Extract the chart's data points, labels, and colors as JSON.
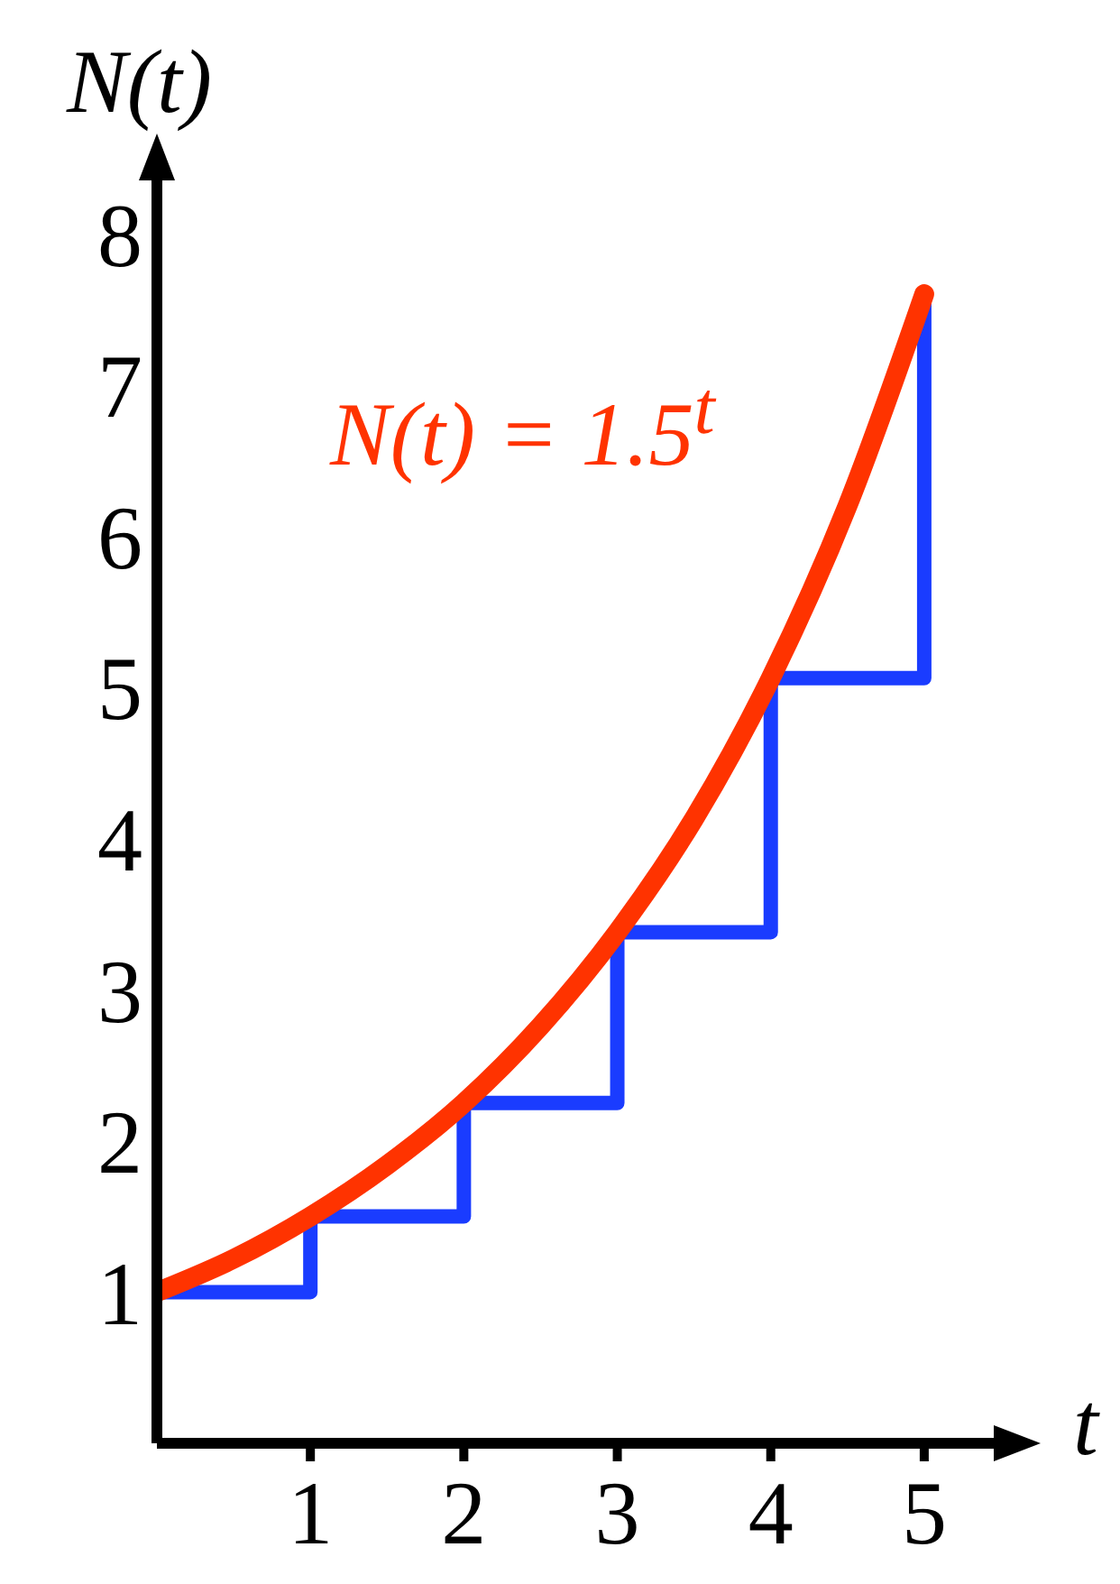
{
  "chart_data": {
    "type": "line",
    "ylabel": "N(t)",
    "xlabel": "t",
    "xlim": [
      0,
      5.5
    ],
    "ylim": [
      0,
      8.4
    ],
    "xticks": [
      1,
      2,
      3,
      4,
      5
    ],
    "yticks": [
      1,
      2,
      3,
      4,
      5,
      6,
      7,
      8
    ],
    "grid": false,
    "marker": "none",
    "line_style": "solid",
    "annotations": [
      "N(t) = 1.5$^{t}$"
    ],
    "series": [
      {
        "type": "step",
        "color": "#1a3cff",
        "x": [
          0,
          1,
          2,
          3,
          4,
          5
        ],
        "values": [
          1,
          1.5,
          2.25,
          3.38,
          5.06,
          7.6
        ]
      },
      {
        "color": "#ff3300",
        "x": [
          0,
          0.5,
          1,
          1.5,
          2,
          2.5,
          3,
          3.5,
          4,
          4.5,
          5
        ],
        "values": [
          1,
          1.22,
          1.5,
          1.84,
          2.25,
          2.76,
          3.38,
          4.13,
          5.06,
          6.2,
          7.6
        ]
      }
    ]
  }
}
